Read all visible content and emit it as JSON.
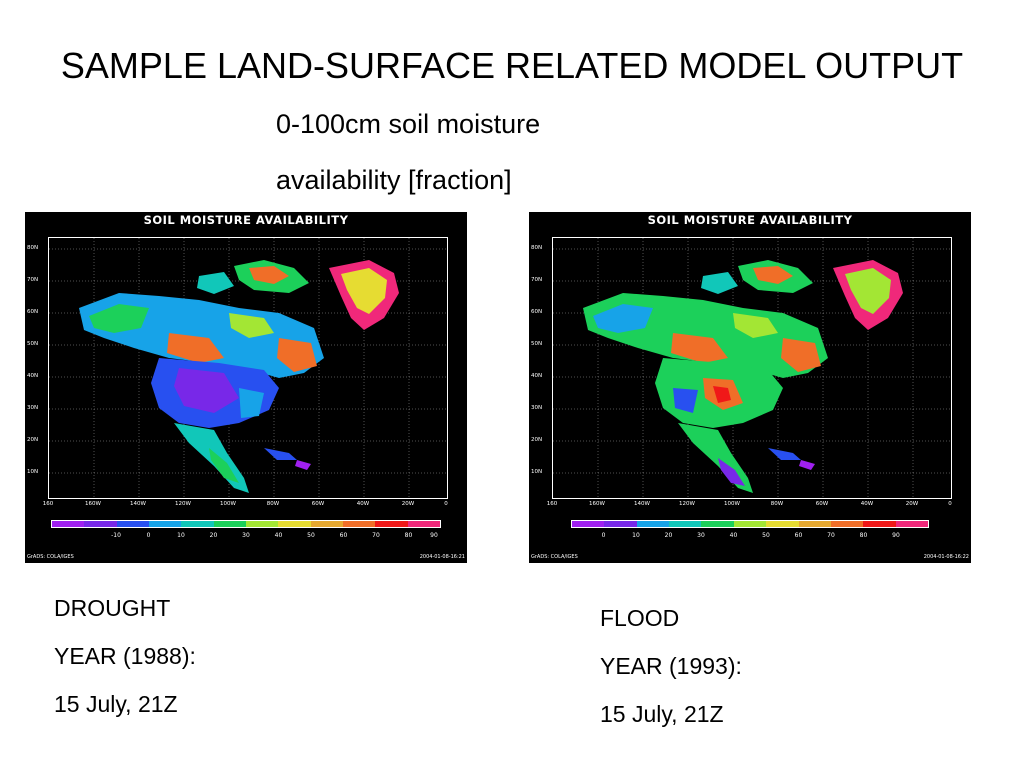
{
  "title": "SAMPLE LAND-SURFACE RELATED MODEL OUTPUT",
  "subtitle_line1": "0-100cm soil moisture",
  "subtitle_line2": "availability [fraction]",
  "colors": {
    "background": "#ffffff",
    "map_background": "#000000",
    "colorbar": [
      "#a020f0",
      "#7828e8",
      "#2850f0",
      "#17a3e8",
      "#11c7b9",
      "#1cd05a",
      "#a3e634",
      "#e6dc32",
      "#e6a830",
      "#f06e28",
      "#f01818",
      "#f0287a"
    ]
  },
  "maps": [
    {
      "title": "SOIL MOISTURE AVAILABILITY",
      "lat_labels": [
        "80N",
        "70N",
        "60N",
        "50N",
        "40N",
        "30N",
        "20N",
        "10N"
      ],
      "lon_labels": [
        "160",
        "160W",
        "140W",
        "120W",
        "100W",
        "80W",
        "60W",
        "40W",
        "20W",
        "0"
      ],
      "colorbar_labels": [
        "-10",
        "0",
        "10",
        "20",
        "30",
        "40",
        "50",
        "60",
        "70",
        "80",
        "90"
      ],
      "footer_left": "GrADS: COLA/IGES",
      "footer_right": "2004-01-08-16:21",
      "legend_icon": "color-scale"
    },
    {
      "title": "SOIL MOISTURE AVAILABILITY",
      "lat_labels": [
        "80N",
        "70N",
        "60N",
        "50N",
        "40N",
        "30N",
        "20N",
        "10N"
      ],
      "lon_labels": [
        "160",
        "160W",
        "140W",
        "120W",
        "100W",
        "80W",
        "60W",
        "40W",
        "20W",
        "0"
      ],
      "colorbar_labels": [
        "0",
        "10",
        "20",
        "30",
        "40",
        "50",
        "60",
        "70",
        "80",
        "90"
      ],
      "footer_left": "GrADS: COLA/IGES",
      "footer_right": "2004-01-08-16:22",
      "legend_icon": "color-scale"
    }
  ],
  "captions": {
    "left": [
      "DROUGHT",
      "YEAR (1988):",
      "15 July, 21Z"
    ],
    "right": [
      "FLOOD",
      "YEAR (1993):",
      "15 July, 21Z"
    ]
  }
}
